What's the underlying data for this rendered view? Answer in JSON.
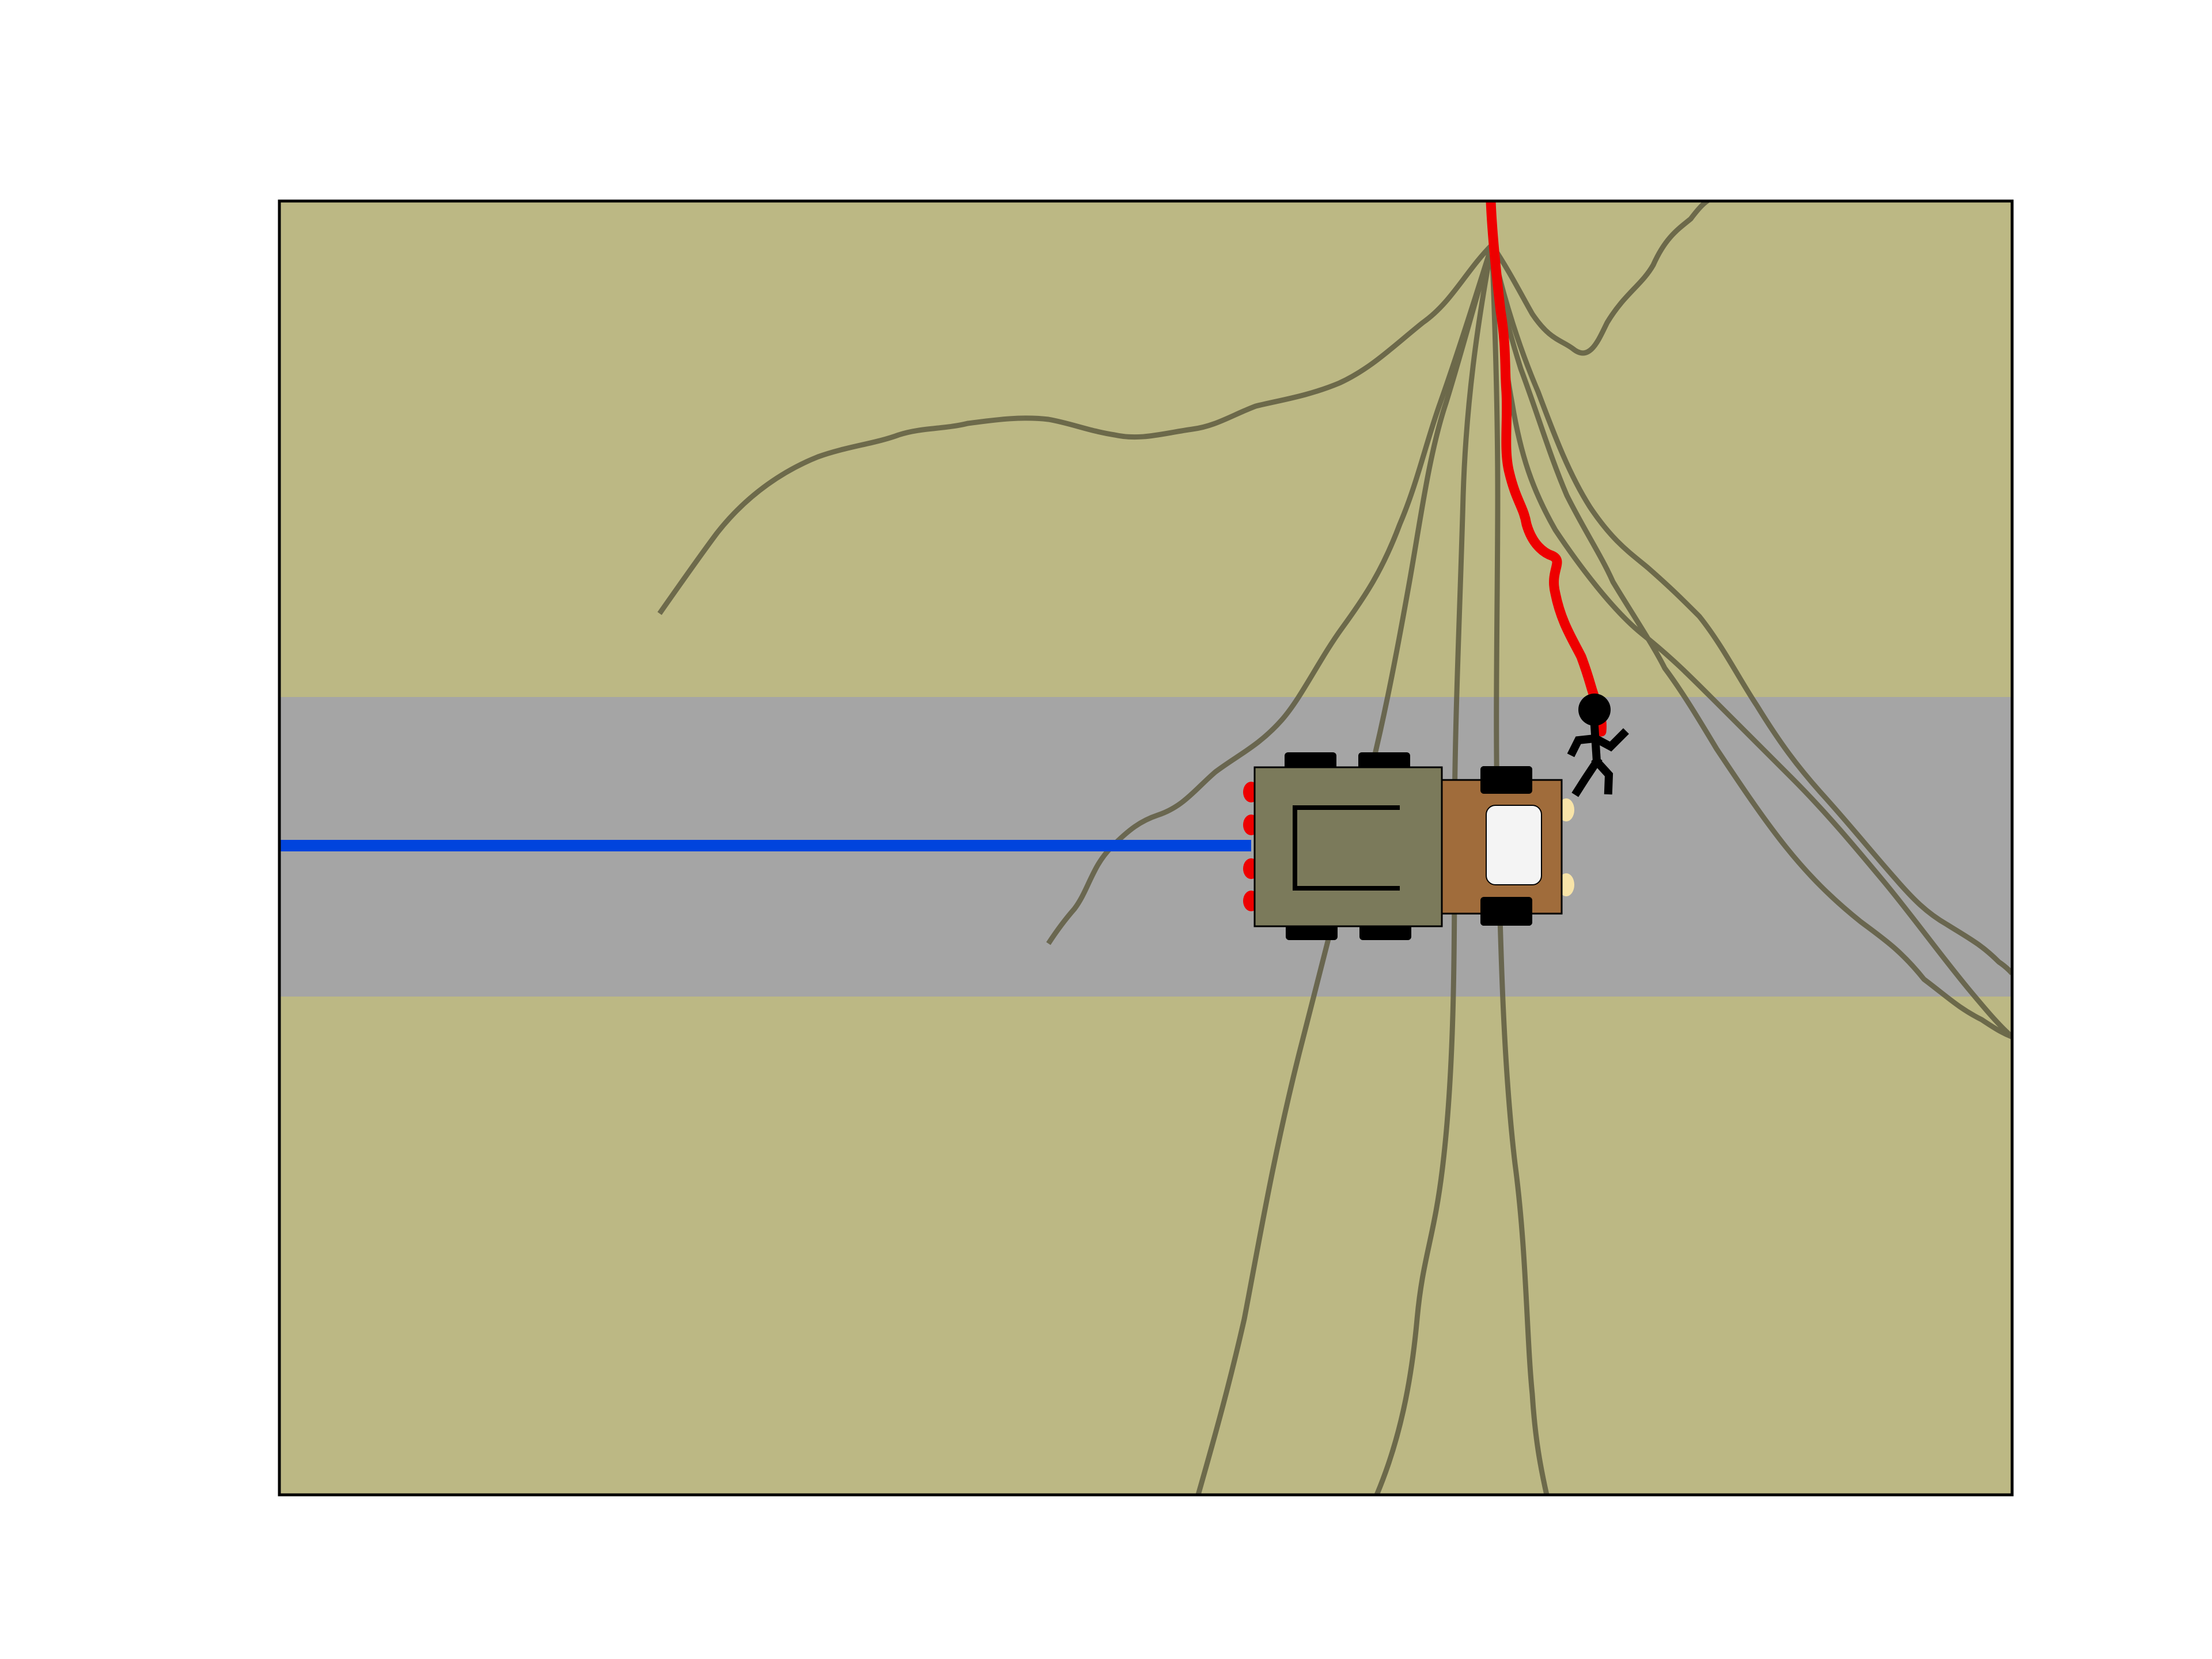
{
  "scene": {
    "type": "top-down driving scene",
    "colors": {
      "background": "#ffffff",
      "grass": "#bcb884",
      "road": "#a5a5a5",
      "frame": "#000000",
      "ego_path": "#0044dd",
      "pedestrian_path": "#ee0000",
      "predicted_paths": "#5f5c41",
      "vehicle_rear_body": "#7b7a5b",
      "vehicle_cab": "#a06c3b",
      "vehicle_windshield": "#f4f4f4",
      "wheels": "#000000",
      "tail_lights": "#ee0000",
      "head_lights": "#f8e4a8",
      "pedestrian": "#000000"
    },
    "icons": {
      "vehicle": "truck-icon",
      "pedestrian": "running-person-icon"
    }
  }
}
